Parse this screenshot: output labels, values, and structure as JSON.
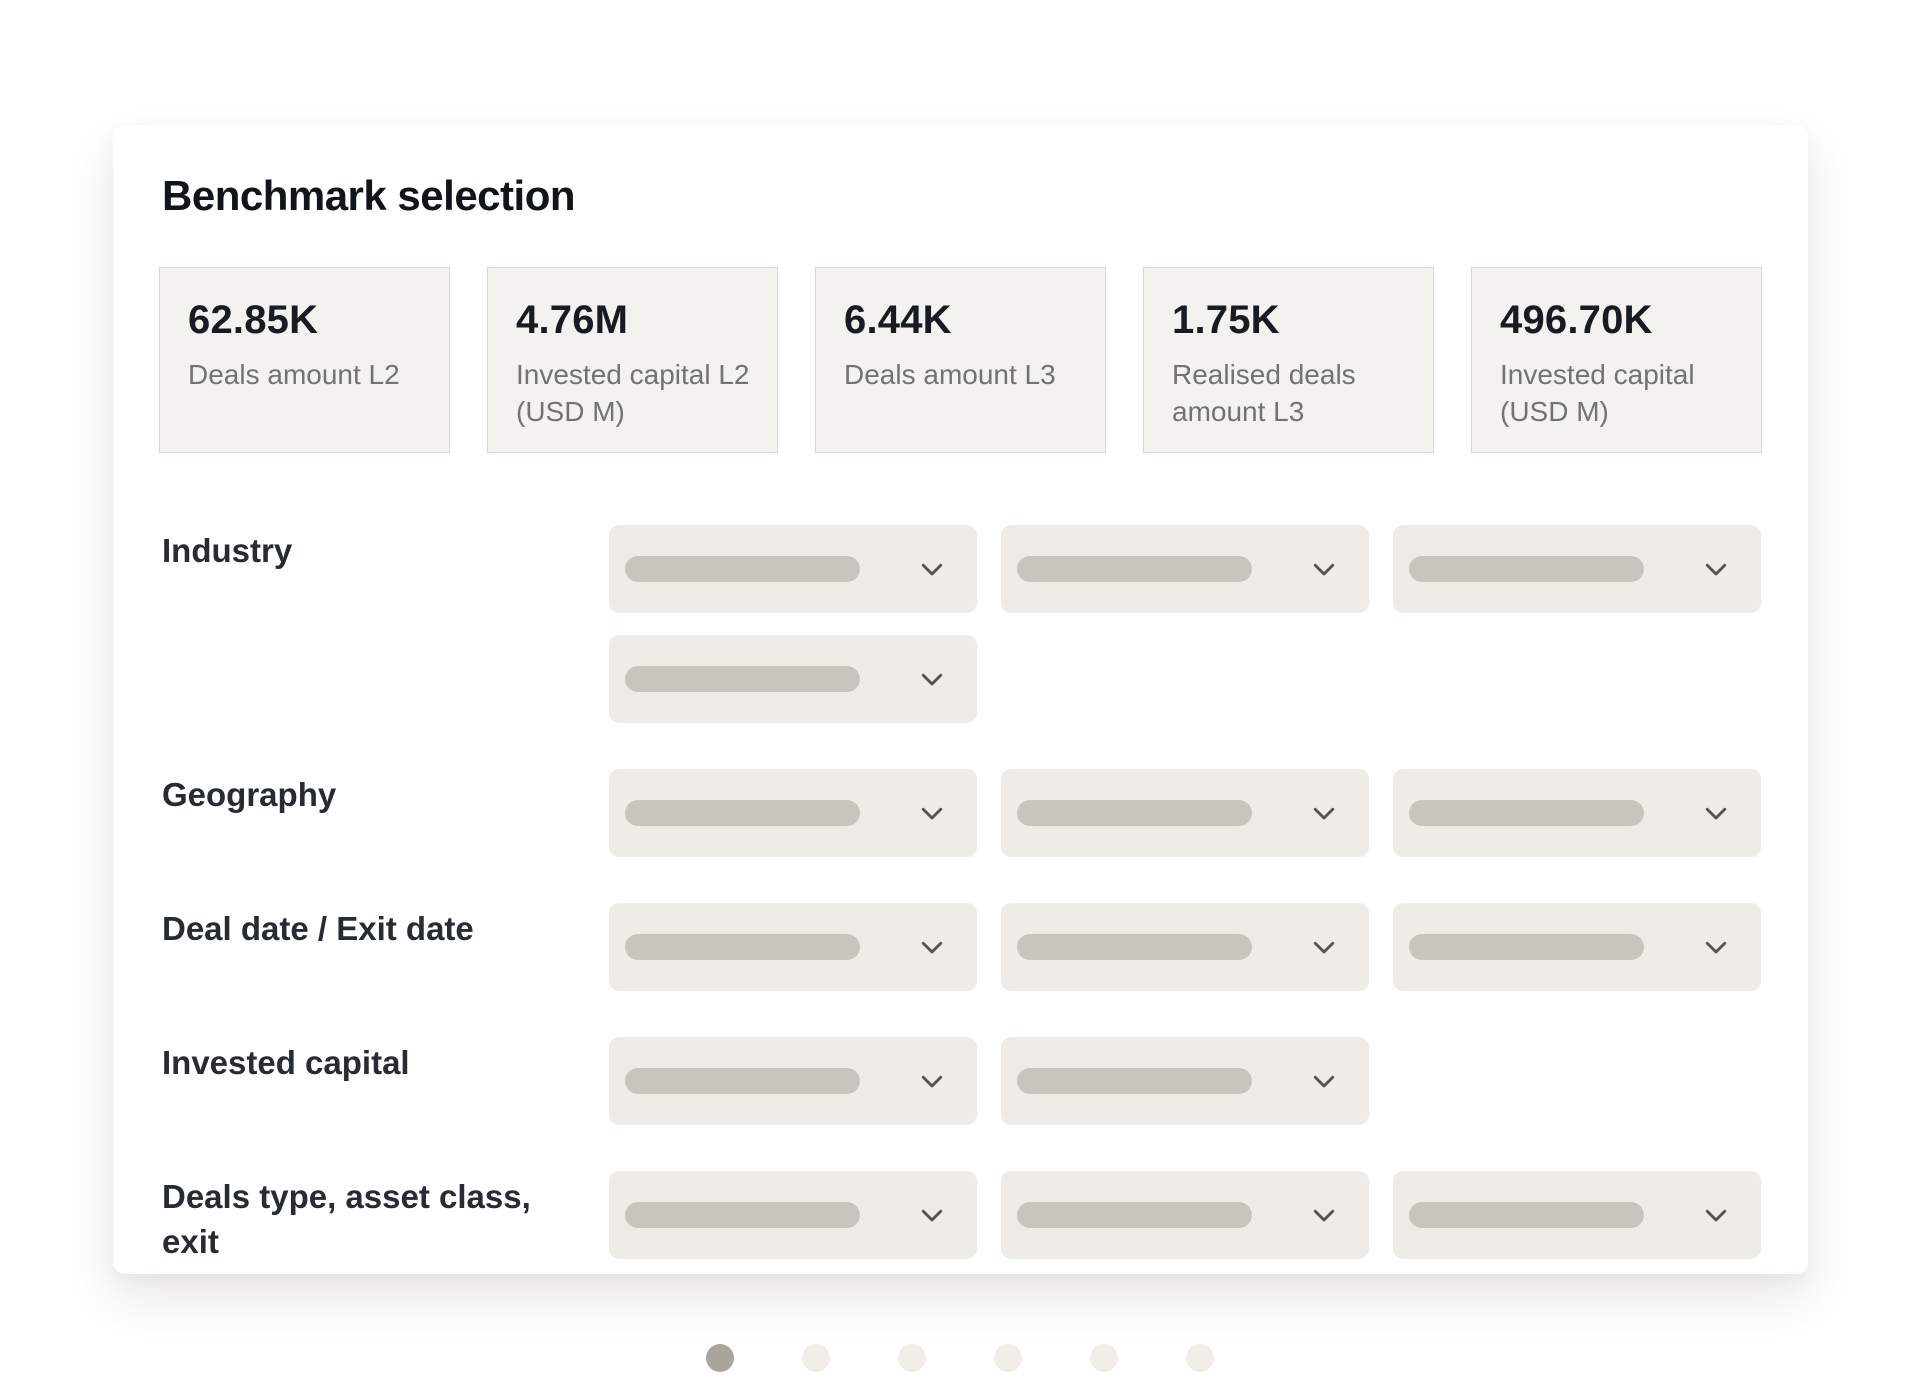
{
  "panel": {
    "title": "Benchmark selection"
  },
  "stats": [
    {
      "value": "62.85K",
      "label": "Deals amount L2"
    },
    {
      "value": "4.76M",
      "label": "Invested capital L2 (USD M)"
    },
    {
      "value": "6.44K",
      "label": "Deals amount L3"
    },
    {
      "value": "1.75K",
      "label": "Realised deals amount L3"
    },
    {
      "value": "496.70K",
      "label": "Invested capital (USD M)"
    }
  ],
  "filters": [
    {
      "id": "industry",
      "label": "Industry",
      "dropdown_rows": [
        3,
        1
      ]
    },
    {
      "id": "geography",
      "label": "Geography",
      "dropdown_rows": [
        3
      ]
    },
    {
      "id": "deal-date-exit-date",
      "label": "Deal date / Exit date",
      "dropdown_rows": [
        3
      ]
    },
    {
      "id": "invested-capital",
      "label": "Invested capital",
      "dropdown_rows": [
        2
      ]
    },
    {
      "id": "deals-type-asset-class-exit",
      "label": "Deals type, asset class, exit",
      "dropdown_rows": [
        3
      ]
    }
  ],
  "carousel": {
    "dot_count": 6,
    "active_index": 0
  },
  "icons": {
    "dropdown_icon": "chevron-down-icon"
  },
  "colors": {
    "accent_active_dot": "#ABA49B",
    "inactive_dot": "#F1ECE6",
    "skeleton_pill": "#C9C5BE",
    "dropdown_bg": "#EFECE8",
    "stat_card_bg": "#F4F2EE",
    "stat_card_border": "#DDD9D2",
    "title_text": "#10141B",
    "stat_value_text": "#171B24",
    "stat_label_text": "#727272",
    "filter_label_text": "#262B34",
    "chevron": "#57534D"
  }
}
